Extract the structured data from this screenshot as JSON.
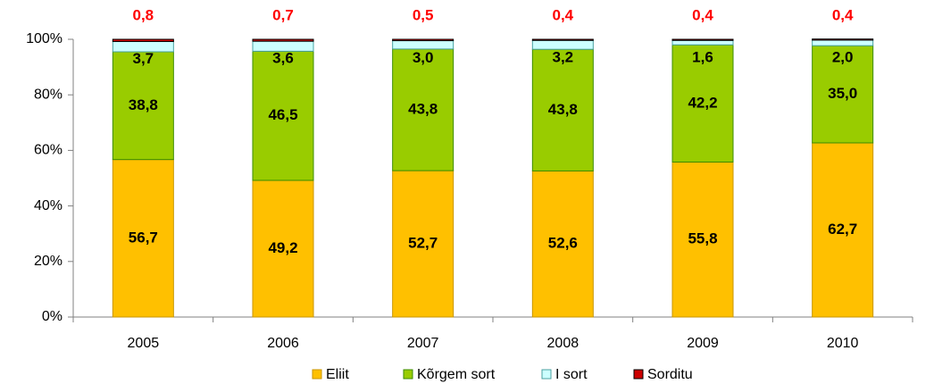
{
  "chart_data": {
    "type": "stacked-bar",
    "categories": [
      "2005",
      "2006",
      "2007",
      "2008",
      "2009",
      "2010"
    ],
    "series": [
      {
        "name": "Eliit",
        "color": "#ffc000",
        "values": [
          56.7,
          49.2,
          52.7,
          52.6,
          55.8,
          62.7
        ],
        "value_labels": [
          "56,7",
          "49,2",
          "52,7",
          "52,6",
          "55,8",
          "62,7"
        ]
      },
      {
        "name": "Kõrgem sort",
        "color": "#99cc00",
        "values": [
          38.8,
          46.5,
          43.8,
          43.8,
          42.2,
          35.0
        ],
        "value_labels": [
          "38,8",
          "46,5",
          "43,8",
          "43,8",
          "42,2",
          "35,0"
        ]
      },
      {
        "name": "I sort",
        "color": "#ccffff",
        "values": [
          3.7,
          3.6,
          3.0,
          3.2,
          1.6,
          2.0
        ],
        "value_labels": [
          "3,7",
          "3,6",
          "3,0",
          "3,2",
          "1,6",
          "2,0"
        ]
      },
      {
        "name": "Sorditu",
        "color": "#cc0000",
        "values": [
          0.8,
          0.7,
          0.5,
          0.4,
          0.4,
          0.4
        ],
        "value_labels": [
          "0,8",
          "0,7",
          "0,5",
          "0,4",
          "0,4",
          "0,4"
        ]
      }
    ],
    "ylim": [
      0,
      100
    ],
    "yticks": [
      {
        "value": 0,
        "label": "0%"
      },
      {
        "value": 20,
        "label": "20%"
      },
      {
        "value": 40,
        "label": "40%"
      },
      {
        "value": 60,
        "label": "60%"
      },
      {
        "value": 80,
        "label": "80%"
      },
      {
        "value": 100,
        "label": "100%"
      }
    ],
    "legend": "bottom"
  }
}
